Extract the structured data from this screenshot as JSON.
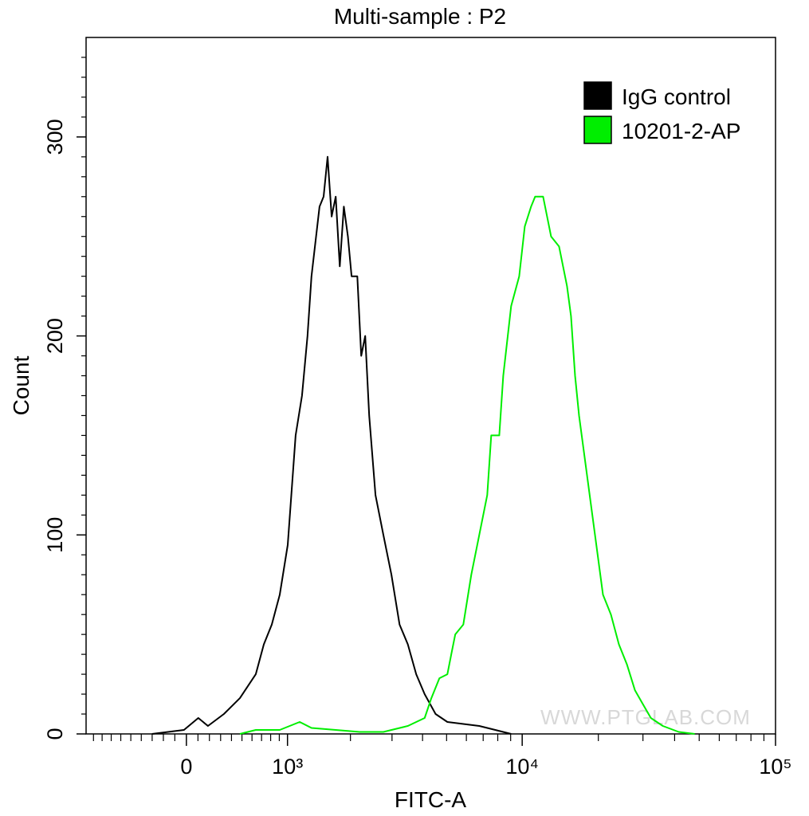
{
  "chart_data": {
    "type": "line",
    "title": "Multi-sample : P2",
    "x_label": "FITC-A",
    "y_label": "Count",
    "watermark": "WWW.PTGLAB.COM",
    "xscale": "logicle",
    "xlim": [
      -990,
      100000
    ],
    "xticks": [
      0,
      {
        "value": 1000,
        "label": "10³"
      },
      {
        "value": 10000,
        "label": "10⁴"
      },
      {
        "value": 100000,
        "label": "10⁵"
      }
    ],
    "xminorticks": [
      -900,
      -800,
      -700,
      -600,
      -500,
      -400,
      -300,
      -200,
      -100,
      100,
      200,
      300,
      400,
      500,
      600,
      700,
      800,
      900,
      2000,
      3000,
      4000,
      5000,
      6000,
      7000,
      8000,
      9000,
      20000,
      30000,
      40000,
      50000,
      60000,
      70000,
      80000,
      90000
    ],
    "ylim": [
      0,
      350
    ],
    "yticks": [
      0,
      100,
      200,
      300
    ],
    "yminorticks": [
      10,
      20,
      30,
      40,
      50,
      60,
      70,
      80,
      90,
      110,
      120,
      130,
      140,
      150,
      160,
      170,
      180,
      190,
      210,
      220,
      230,
      240,
      250,
      260,
      270,
      280,
      290,
      310,
      320,
      330,
      340
    ],
    "legend": "top-right",
    "series": [
      {
        "name": "IgG control",
        "color": "#000000",
        "x": [
          -301,
          -21,
          103,
          187,
          330,
          480,
          639,
          724,
          813,
          906,
          1003,
          1105,
          1191,
          1269,
          1327,
          1449,
          1514,
          1580,
          1650,
          1721,
          1794,
          1871,
          1950,
          2023,
          2142,
          2227,
          2316,
          2407,
          2560,
          2762,
          2983,
          3223,
          3486,
          3770,
          4078,
          4514,
          5035,
          5833,
          6755,
          7820,
          9044
        ],
        "values": [
          0,
          2,
          8,
          4,
          10,
          18,
          30,
          45,
          55,
          70,
          95,
          150,
          170,
          200,
          230,
          265,
          270,
          290,
          260,
          270,
          235,
          265,
          250,
          230,
          230,
          190,
          200,
          160,
          120,
          100,
          80,
          55,
          45,
          30,
          20,
          10,
          6,
          5,
          4,
          2,
          0
        ]
      },
      {
        "name": "10201-2-AP",
        "color": "#00ee00",
        "x": [
          480,
          639,
          906,
          1159,
          1327,
          1721,
          2193,
          2762,
          3486,
          4078,
          4342,
          4677,
          5035,
          5223,
          5419,
          5833,
          6277,
          6755,
          7266,
          7536,
          8110,
          8410,
          9044,
          9728,
          10238,
          10847,
          11250,
          12100,
          12547,
          13010,
          13990,
          15040,
          15600,
          16180,
          16780,
          18040,
          19400,
          20860,
          22430,
          24110,
          25920,
          27880,
          29970,
          32230,
          35930,
          41540,
          48010
        ],
        "values": [
          0,
          2,
          2,
          6,
          3,
          2,
          1,
          1,
          4,
          8,
          18,
          28,
          30,
          40,
          50,
          55,
          80,
          100,
          120,
          150,
          150,
          180,
          215,
          230,
          255,
          265,
          270,
          270,
          260,
          250,
          245,
          225,
          210,
          180,
          160,
          130,
          100,
          70,
          60,
          45,
          35,
          22,
          15,
          8,
          4,
          1,
          0
        ]
      }
    ]
  }
}
